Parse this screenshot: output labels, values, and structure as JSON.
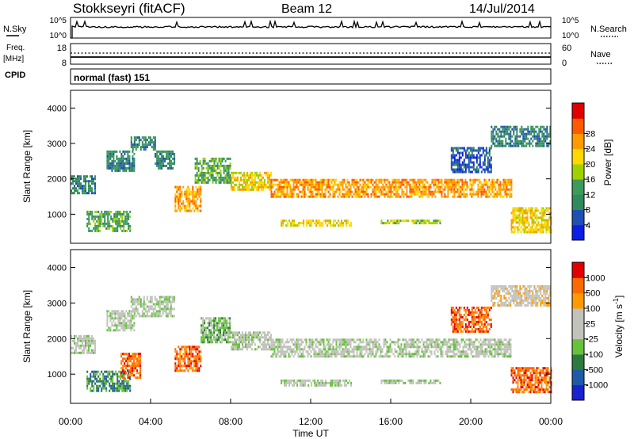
{
  "header": {
    "station": "Stokkseyri (fitACF)",
    "beam": "Beam 12",
    "date": "14/Jul/2014"
  },
  "panels": {
    "nsky": {
      "label": "N.Sky",
      "right_label": "N.Search",
      "ticks_left": [
        "10^5",
        "10^0"
      ],
      "ticks_right": [
        "10^5",
        "10^0"
      ]
    },
    "freq": {
      "label": "Freq.",
      "unit": "[MHz]",
      "right_label": "Nave",
      "ticks_left": [
        "18",
        "8"
      ],
      "ticks_right": [
        "60",
        "0"
      ]
    },
    "cpid": {
      "label": "CPID",
      "mode": "normal (fast) 151"
    }
  },
  "colors": {
    "power": [
      "#0a1ee6",
      "#1f4fb4",
      "#2f8a5c",
      "#3d9a5a",
      "#a0d000",
      "#ffd800",
      "#ff9b00",
      "#ff5a00",
      "#e00000"
    ],
    "velocity": [
      "#1a22d0",
      "#1e5aa8",
      "#2e7a3e",
      "#66c23c",
      "#c2c2bc",
      "#c2c2bc",
      "#ff9b00",
      "#ff6a00",
      "#e00000"
    ]
  },
  "chart_data": [
    {
      "type": "heatmap",
      "name": "power",
      "ylabel": "Slant Range [km]",
      "y_ticks": [
        1000,
        2000,
        3000,
        4000
      ],
      "ylim": [
        180,
        4500
      ],
      "xlim": [
        0,
        24
      ],
      "colorbar": {
        "label": "Power [dB]",
        "ticks": [
          4,
          8,
          12,
          16,
          20,
          24,
          28
        ]
      },
      "bands": [
        {
          "t0": 0.0,
          "t1": 1.2,
          "r0": 1600,
          "r1": 2100,
          "level": 2
        },
        {
          "t0": 0.8,
          "t1": 3.0,
          "r0": 500,
          "r1": 1100,
          "level": 3
        },
        {
          "t0": 1.8,
          "t1": 3.2,
          "r0": 2200,
          "r1": 2800,
          "level": 2
        },
        {
          "t0": 3.0,
          "t1": 4.2,
          "r0": 2800,
          "r1": 3200,
          "level": 2
        },
        {
          "t0": 4.2,
          "t1": 5.2,
          "r0": 2300,
          "r1": 2800,
          "level": 2
        },
        {
          "t0": 5.2,
          "t1": 6.5,
          "r0": 1100,
          "r1": 1800,
          "level": 6
        },
        {
          "t0": 6.2,
          "t1": 8.0,
          "r0": 1900,
          "r1": 2600,
          "level": 3
        },
        {
          "t0": 8.0,
          "t1": 10.0,
          "r0": 1700,
          "r1": 2200,
          "level": 5
        },
        {
          "t0": 10.0,
          "t1": 15.5,
          "r0": 1500,
          "r1": 2000,
          "level": 6
        },
        {
          "t0": 10.5,
          "t1": 14.0,
          "r0": 700,
          "r1": 850,
          "level": 5
        },
        {
          "t0": 15.5,
          "t1": 18.5,
          "r0": 750,
          "r1": 850,
          "level": 4
        },
        {
          "t0": 15.5,
          "t1": 22.0,
          "r0": 1500,
          "r1": 2000,
          "level": 6
        },
        {
          "t0": 19.0,
          "t1": 21.0,
          "r0": 2200,
          "r1": 2900,
          "level": 1
        },
        {
          "t0": 21.0,
          "t1": 24.0,
          "r0": 2900,
          "r1": 3500,
          "level": 2
        },
        {
          "t0": 22.0,
          "t1": 24.0,
          "r0": 500,
          "r1": 1200,
          "level": 5
        }
      ]
    },
    {
      "type": "heatmap",
      "name": "velocity",
      "ylabel": "Slant Range [km]",
      "xlabel": "Time UT",
      "x_ticks": [
        "00:00",
        "04:00",
        "08:00",
        "12:00",
        "16:00",
        "20:00",
        "00:00"
      ],
      "y_ticks": [
        1000,
        2000,
        3000,
        4000
      ],
      "ylim": [
        180,
        4500
      ],
      "xlim": [
        0,
        24
      ],
      "colorbar": {
        "label": "Velocity [m s",
        "unit_exp": "-1",
        "unit_close": "]",
        "ticks": [
          1000,
          500,
          100,
          25,
          -25,
          -100,
          -500,
          -1000
        ]
      },
      "bands": [
        {
          "t0": 0.0,
          "t1": 1.2,
          "r0": 1600,
          "r1": 2100,
          "level": 4
        },
        {
          "t0": 0.8,
          "t1": 3.0,
          "r0": 500,
          "r1": 1100,
          "level": 2
        },
        {
          "t0": 1.8,
          "t1": 3.2,
          "r0": 2200,
          "r1": 2800,
          "level": 4
        },
        {
          "t0": 2.5,
          "t1": 3.5,
          "r0": 900,
          "r1": 1600,
          "level": 7
        },
        {
          "t0": 3.0,
          "t1": 5.2,
          "r0": 2600,
          "r1": 3200,
          "level": 4
        },
        {
          "t0": 5.2,
          "t1": 6.5,
          "r0": 1100,
          "r1": 1800,
          "level": 7
        },
        {
          "t0": 6.5,
          "t1": 8.0,
          "r0": 1900,
          "r1": 2600,
          "level": 3
        },
        {
          "t0": 8.0,
          "t1": 10.0,
          "r0": 1700,
          "r1": 2200,
          "level": 4
        },
        {
          "t0": 10.0,
          "t1": 22.0,
          "r0": 1500,
          "r1": 2000,
          "level": 4
        },
        {
          "t0": 10.5,
          "t1": 14.0,
          "r0": 700,
          "r1": 850,
          "level": 4
        },
        {
          "t0": 15.5,
          "t1": 18.5,
          "r0": 750,
          "r1": 850,
          "level": 4
        },
        {
          "t0": 19.0,
          "t1": 21.0,
          "r0": 2200,
          "r1": 2900,
          "level": 7
        },
        {
          "t0": 21.0,
          "t1": 24.0,
          "r0": 2900,
          "r1": 3500,
          "level": 5
        },
        {
          "t0": 22.0,
          "t1": 24.0,
          "r0": 500,
          "r1": 1200,
          "level": 7
        }
      ]
    }
  ]
}
